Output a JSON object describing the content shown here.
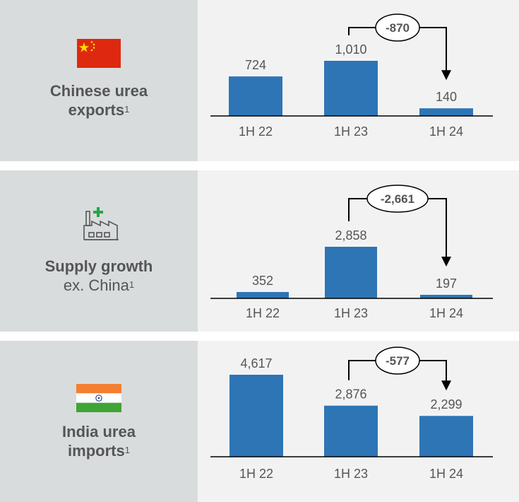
{
  "colors": {
    "bar": "#2e75b6",
    "text": "#555555",
    "left_bg": "#d9dcdd",
    "right_bg": "#f2f2f2"
  },
  "panels": [
    {
      "label_lines": [
        {
          "text": "Chinese urea",
          "bold": true
        },
        {
          "text": "exports",
          "bold": true,
          "sup": "1"
        }
      ],
      "icon": "china-flag-icon"
    },
    {
      "label_lines": [
        {
          "text": "Supply growth",
          "bold": true
        },
        {
          "text": "ex. China",
          "bold": false,
          "sup": "1"
        }
      ],
      "icon": "factory-plus-icon"
    },
    {
      "label_lines": [
        {
          "text": "India urea",
          "bold": true
        },
        {
          "text": "imports",
          "bold": true,
          "sup": "1"
        }
      ],
      "icon": "india-flag-icon"
    }
  ],
  "chart_data": [
    {
      "type": "bar",
      "categories": [
        "1H 22",
        "1H 23",
        "1H 24"
      ],
      "values": [
        724,
        1010,
        140
      ],
      "value_labels": [
        "724",
        "1,010",
        "140"
      ],
      "change_label": "-870",
      "change_from": "1H 23",
      "change_to": "1H 24",
      "ylim": [
        0,
        1010
      ]
    },
    {
      "type": "bar",
      "categories": [
        "1H 22",
        "1H 23",
        "1H 24"
      ],
      "values": [
        352,
        2858,
        197
      ],
      "value_labels": [
        "352",
        "2,858",
        "197"
      ],
      "change_label": "-2,661",
      "change_from": "1H 23",
      "change_to": "1H 24",
      "ylim": [
        0,
        2858
      ]
    },
    {
      "type": "bar",
      "categories": [
        "1H 22",
        "1H 23",
        "1H 24"
      ],
      "values": [
        4617,
        2876,
        2299
      ],
      "value_labels": [
        "4,617",
        "2,876",
        "2,299"
      ],
      "change_label": "-577",
      "change_from": "1H 23",
      "change_to": "1H 24",
      "ylim": [
        0,
        4617
      ]
    }
  ]
}
